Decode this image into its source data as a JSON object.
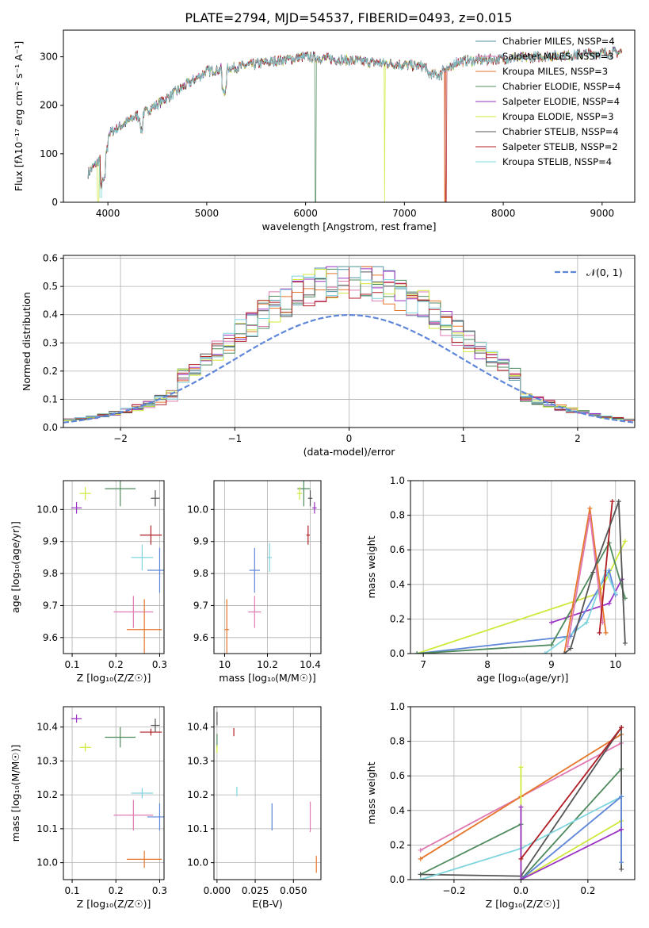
{
  "title": "PLATE=2794, MJD=54537, FIBERID=0493, z=0.015",
  "colors": {
    "chabrier_miles": "#4f8fa6",
    "salpeter_miles": "#e07ab3",
    "kroupa_miles": "#e5762a",
    "chabrier_elodie": "#4e8a5c",
    "salpeter_elodie": "#9a33c4",
    "kroupa_elodie": "#cfe83a",
    "chabrier_stelib": "#555555",
    "salpeter_stelib": "#b01d24",
    "kroupa_stelib": "#7fd5dd",
    "blue_model": "#5e86d8",
    "normal": "#5e86d8"
  },
  "chart_data": [
    {
      "id": "spectrum",
      "type": "line",
      "xlabel": "wavelength [Angstrom, rest frame]",
      "ylabel": "Flux [f_λ 10^-17 erg cm^-2 s^-1 A^-1]",
      "xlim": [
        3550,
        9330
      ],
      "ylim": [
        0,
        355
      ],
      "xticks": [
        4000,
        5000,
        6000,
        7000,
        8000,
        9000
      ],
      "yticks": [
        0,
        100,
        200,
        300
      ],
      "grid": false,
      "legend": "top-right",
      "spectrum_range": [
        3800,
        9200
      ],
      "series": [
        {
          "name": "Chabrier MILES, N_SSP=4",
          "color_key": "chabrier_miles",
          "drop_at": null
        },
        {
          "name": "Salpeter MILES, N_SSP=3",
          "color_key": "salpeter_miles",
          "drop_at": null
        },
        {
          "name": "Kroupa MILES, N_SSP=3",
          "color_key": "kroupa_miles",
          "drop_at": 7410
        },
        {
          "name": "Chabrier ELODIE, N_SSP=4",
          "color_key": "chabrier_elodie",
          "drop_at": 6100
        },
        {
          "name": "Salpeter ELODIE, N_SSP=4",
          "color_key": "salpeter_elodie",
          "drop_at": null
        },
        {
          "name": "Kroupa ELODIE, N_SSP=3",
          "color_key": "kroupa_elodie",
          "drop_at": 6800
        },
        {
          "name": "Chabrier STELIB, N_SSP=4",
          "color_key": "chabrier_stelib",
          "drop_at": null
        },
        {
          "name": "Salpeter STELIB, N_SSP=2",
          "color_key": "salpeter_stelib",
          "drop_at": 7420
        },
        {
          "name": "Kroupa STELIB, N_SSP=4",
          "color_key": "kroupa_stelib",
          "drop_at": null
        }
      ]
    },
    {
      "id": "residuals",
      "type": "line",
      "xlabel": "(data-model)/error",
      "ylabel": "Normed distribution",
      "xlim": [
        -2.5,
        2.5
      ],
      "ylim": [
        0,
        0.61
      ],
      "xticks": [
        -2,
        -1,
        0,
        1,
        2
      ],
      "yticks": [
        0.0,
        0.1,
        0.2,
        0.3,
        0.4,
        0.5,
        0.6
      ],
      "grid": true,
      "legend": "top-right",
      "legend_label": "N(0,1)",
      "bin_width": 0.1,
      "peak_height": 0.54,
      "series": [
        "chabrier_miles",
        "salpeter_miles",
        "kroupa_miles",
        "chabrier_elodie",
        "salpeter_elodie",
        "kroupa_elodie",
        "chabrier_stelib",
        "salpeter_stelib",
        "kroupa_stelib"
      ]
    },
    {
      "id": "age_vs_Z",
      "type": "scatter",
      "xlabel": "Z [log10(Z/Z☉)]",
      "ylabel": "age [log10(age/yr)]",
      "xlim": [
        0.08,
        0.31
      ],
      "ylim": [
        9.55,
        10.09
      ],
      "xticks": [
        0.1,
        0.2,
        0.3
      ],
      "yticks": [
        9.6,
        9.7,
        9.8,
        9.9,
        10.0
      ],
      "grid": true,
      "points": [
        {
          "c": "kroupa_elodie",
          "x": 0.13,
          "xe": 0.013,
          "y": 10.05,
          "ye": 0.02
        },
        {
          "c": "salpeter_elodie",
          "x": 0.11,
          "xe": 0.012,
          "y": 10.005,
          "ye": 0.018
        },
        {
          "c": "chabrier_elodie",
          "x": 0.21,
          "xe": 0.035,
          "y": 10.065,
          "ye": 0.055
        },
        {
          "c": "chabrier_stelib",
          "x": 0.29,
          "xe": 0.01,
          "y": 10.035,
          "ye": 0.025
        },
        {
          "c": "salpeter_stelib",
          "x": 0.28,
          "xe": 0.025,
          "y": 9.92,
          "ye": 0.03
        },
        {
          "c": "kroupa_stelib",
          "x": 0.26,
          "xe": 0.025,
          "y": 9.85,
          "ye": 0.04
        },
        {
          "c": "blue_model",
          "x": 0.3,
          "xe": 0.028,
          "y": 9.81,
          "ye": 0.07
        },
        {
          "c": "salpeter_miles",
          "x": 0.24,
          "xe": 0.045,
          "y": 9.68,
          "ye": 0.05
        },
        {
          "c": "kroupa_miles",
          "x": 0.265,
          "xe": 0.04,
          "y": 9.625,
          "ye": 0.095
        }
      ]
    },
    {
      "id": "age_vs_mass",
      "type": "scatter",
      "xlabel": "mass [log10(M/M☉)]",
      "ylabel": "",
      "xlim": [
        9.95,
        10.45
      ],
      "ylim": [
        9.55,
        10.09
      ],
      "xticks": [
        10.0,
        10.2,
        10.4
      ],
      "yticks": [
        9.6,
        9.7,
        9.8,
        9.9,
        10.0
      ],
      "grid": true,
      "points": [
        {
          "c": "chabrier_elodie",
          "x": 10.37,
          "xe": 0.03,
          "y": 10.065,
          "ye": 0.055
        },
        {
          "c": "kroupa_elodie",
          "x": 10.35,
          "xe": 0.012,
          "y": 10.05,
          "ye": 0.02
        },
        {
          "c": "chabrier_stelib",
          "x": 10.4,
          "xe": 0.01,
          "y": 10.035,
          "ye": 0.025
        },
        {
          "c": "salpeter_elodie",
          "x": 10.42,
          "xe": 0.01,
          "y": 10.005,
          "ye": 0.018
        },
        {
          "c": "salpeter_stelib",
          "x": 10.39,
          "xe": 0.008,
          "y": 9.92,
          "ye": 0.03
        },
        {
          "c": "kroupa_stelib",
          "x": 10.21,
          "xe": 0.01,
          "y": 9.85,
          "ye": 0.045
        },
        {
          "c": "blue_model",
          "x": 10.14,
          "xe": 0.025,
          "y": 9.81,
          "ye": 0.07
        },
        {
          "c": "salpeter_miles",
          "x": 10.14,
          "xe": 0.03,
          "y": 9.68,
          "ye": 0.05
        },
        {
          "c": "kroupa_miles",
          "x": 10.01,
          "xe": 0.01,
          "y": 9.625,
          "ye": 0.095
        }
      ]
    },
    {
      "id": "weight_vs_age",
      "type": "line",
      "xlabel": "age [log10(age/yr)]",
      "ylabel": "mass weight",
      "xlim": [
        6.8,
        10.3
      ],
      "ylim": [
        0,
        1.0
      ],
      "xticks": [
        7,
        8,
        9,
        10
      ],
      "yticks": [
        0.0,
        0.2,
        0.4,
        0.6,
        0.8,
        1.0
      ],
      "grid": true,
      "series": [
        {
          "c": "kroupa_elodie",
          "pts": [
            [
              6.9,
              0.0
            ],
            [
              9.75,
              0.35
            ],
            [
              10.15,
              0.65
            ]
          ]
        },
        {
          "c": "salpeter_elodie",
          "pts": [
            [
              9.0,
              0.18
            ],
            [
              9.9,
              0.29
            ],
            [
              10.1,
              0.43
            ]
          ]
        },
        {
          "c": "blue_model",
          "pts": [
            [
              6.9,
              0.0
            ],
            [
              9.3,
              0.1
            ],
            [
              9.9,
              0.48
            ],
            [
              10.0,
              0.34
            ]
          ]
        },
        {
          "c": "chabrier_elodie",
          "pts": [
            [
              6.9,
              0.0
            ],
            [
              9.0,
              0.05
            ],
            [
              9.9,
              0.64
            ],
            [
              10.15,
              0.32
            ]
          ]
        },
        {
          "c": "kroupa_stelib",
          "pts": [
            [
              8.9,
              0.0
            ],
            [
              9.55,
              0.18
            ],
            [
              9.85,
              0.48
            ],
            [
              10.0,
              0.35
            ]
          ]
        },
        {
          "c": "kroupa_miles",
          "pts": [
            [
              9.2,
              0.0
            ],
            [
              9.6,
              0.84
            ],
            [
              9.85,
              0.12
            ]
          ]
        },
        {
          "c": "salpeter_miles",
          "pts": [
            [
              9.25,
              0.04
            ],
            [
              9.6,
              0.8
            ],
            [
              9.8,
              0.18
            ]
          ]
        },
        {
          "c": "salpeter_stelib",
          "pts": [
            [
              9.75,
              0.12
            ],
            [
              9.95,
              0.88
            ]
          ]
        },
        {
          "c": "chabrier_stelib",
          "pts": [
            [
              9.2,
              0.0
            ],
            [
              9.3,
              0.03
            ],
            [
              9.65,
              0.47
            ],
            [
              10.05,
              0.88
            ],
            [
              10.15,
              0.06
            ]
          ]
        }
      ]
    },
    {
      "id": "mass_vs_Z",
      "type": "scatter",
      "xlabel": "Z [log10(Z/Z☉)]",
      "ylabel": "mass [log10(M/M☉)]",
      "xlim": [
        0.08,
        0.31
      ],
      "ylim": [
        9.95,
        10.46
      ],
      "xticks": [
        0.1,
        0.2,
        0.3
      ],
      "yticks": [
        10.0,
        10.1,
        10.2,
        10.3,
        10.4
      ],
      "grid": true,
      "points": [
        {
          "c": "salpeter_elodie",
          "x": 0.11,
          "xe": 0.012,
          "y": 10.425,
          "ye": 0.012
        },
        {
          "c": "kroupa_elodie",
          "x": 0.13,
          "xe": 0.013,
          "y": 10.34,
          "ye": 0.012
        },
        {
          "c": "chabrier_elodie",
          "x": 0.21,
          "xe": 0.035,
          "y": 10.37,
          "ye": 0.03
        },
        {
          "c": "salpeter_stelib",
          "x": 0.28,
          "xe": 0.025,
          "y": 10.385,
          "ye": 0.01
        },
        {
          "c": "chabrier_stelib",
          "x": 0.29,
          "xe": 0.01,
          "y": 10.405,
          "ye": 0.02
        },
        {
          "c": "kroupa_stelib",
          "x": 0.26,
          "xe": 0.025,
          "y": 10.205,
          "ye": 0.015
        },
        {
          "c": "salpeter_miles",
          "x": 0.24,
          "xe": 0.045,
          "y": 10.14,
          "ye": 0.045
        },
        {
          "c": "blue_model",
          "x": 0.3,
          "xe": 0.028,
          "y": 10.135,
          "ye": 0.04
        },
        {
          "c": "kroupa_miles",
          "x": 0.265,
          "xe": 0.04,
          "y": 10.01,
          "ye": 0.025
        }
      ]
    },
    {
      "id": "mass_vs_EBV",
      "type": "scatter",
      "xlabel": "E(B-V)",
      "ylabel": "",
      "xlim": [
        -0.002,
        0.068
      ],
      "ylim": [
        9.95,
        10.46
      ],
      "xticks": [
        0.0,
        0.025,
        0.05
      ],
      "xticklabels": [
        "0.000",
        "0.025",
        "0.050"
      ],
      "yticks": [
        10.0,
        10.1,
        10.2,
        10.3,
        10.4
      ],
      "grid": true,
      "points": [
        {
          "c": "chabrier_stelib",
          "x": 0.0,
          "xe": 0.0,
          "y": 10.425,
          "ye": 0.02
        },
        {
          "c": "chabrier_elodie",
          "x": 0.0,
          "xe": 0.0,
          "y": 10.36,
          "ye": 0.02
        },
        {
          "c": "kroupa_elodie",
          "x": 0.0,
          "xe": 0.0,
          "y": 10.335,
          "ye": 0.012
        },
        {
          "c": "salpeter_stelib",
          "x": 0.011,
          "xe": 0.0,
          "y": 10.385,
          "ye": 0.012
        },
        {
          "c": "kroupa_stelib",
          "x": 0.013,
          "xe": 0.0,
          "y": 10.21,
          "ye": 0.014
        },
        {
          "c": "blue_model",
          "x": 0.036,
          "xe": 0.0,
          "y": 10.135,
          "ye": 0.04
        },
        {
          "c": "salpeter_miles",
          "x": 0.061,
          "xe": 0.0,
          "y": 10.135,
          "ye": 0.045
        },
        {
          "c": "kroupa_miles",
          "x": 0.065,
          "xe": 0.0,
          "y": 9.995,
          "ye": 0.025
        }
      ]
    },
    {
      "id": "weight_vs_Z",
      "type": "line",
      "xlabel": "Z [log10(Z/Z☉)]",
      "ylabel": "mass weight",
      "xlim": [
        -0.33,
        0.34
      ],
      "ylim": [
        0,
        1.0
      ],
      "xticks": [
        -0.2,
        0.0,
        0.2
      ],
      "yticks": [
        0.0,
        0.2,
        0.4,
        0.6,
        0.8,
        1.0
      ],
      "grid": true,
      "series": [
        {
          "c": "salpeter_miles",
          "pts": [
            [
              -0.3,
              0.17
            ],
            [
              0.0,
              0.48
            ],
            [
              0.3,
              0.79
            ]
          ]
        },
        {
          "c": "kroupa_miles",
          "pts": [
            [
              -0.3,
              0.12
            ],
            [
              0.0,
              0.48
            ],
            [
              0.3,
              0.84
            ]
          ]
        },
        {
          "c": "chabrier_elodie",
          "pts": [
            [
              -0.3,
              0.03
            ],
            [
              0.0,
              0.32
            ],
            [
              0.0,
              0.0
            ],
            [
              0.3,
              0.64
            ]
          ]
        },
        {
          "c": "chabrier_stelib",
          "pts": [
            [
              -0.3,
              0.03
            ],
            [
              0.0,
              0.02
            ],
            [
              0.3,
              0.88
            ],
            [
              0.3,
              0.06
            ]
          ]
        },
        {
          "c": "kroupa_stelib",
          "pts": [
            [
              -0.3,
              0.0
            ],
            [
              0.0,
              0.18
            ],
            [
              0.3,
              0.48
            ]
          ]
        },
        {
          "c": "kroupa_elodie",
          "pts": [
            [
              0.0,
              0.65
            ],
            [
              0.0,
              0.0
            ],
            [
              0.3,
              0.34
            ]
          ]
        },
        {
          "c": "blue_model",
          "pts": [
            [
              0.0,
              0.0
            ],
            [
              0.3,
              0.48
            ],
            [
              0.3,
              0.1
            ]
          ]
        },
        {
          "c": "salpeter_elodie",
          "pts": [
            [
              0.0,
              0.42
            ],
            [
              0.0,
              0.0
            ],
            [
              0.3,
              0.29
            ]
          ]
        },
        {
          "c": "salpeter_stelib",
          "pts": [
            [
              0.0,
              0.12
            ],
            [
              0.3,
              0.88
            ]
          ]
        }
      ]
    }
  ]
}
